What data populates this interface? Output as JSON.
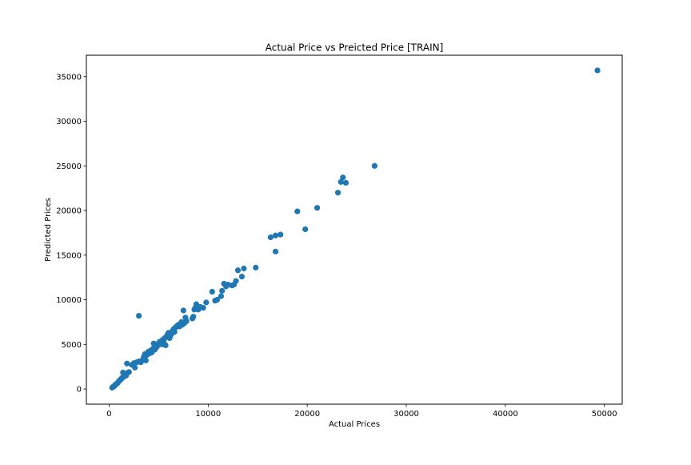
{
  "chart_data": {
    "type": "scatter",
    "title": "Actual Price vs Preicted Price [TRAIN]",
    "xlabel": "Actual Prices",
    "ylabel": "Predicted Prices",
    "xlim": [
      -2300,
      51800
    ],
    "ylim": [
      -1700,
      37400
    ],
    "xticks": [
      0,
      10000,
      20000,
      30000,
      40000,
      50000
    ],
    "yticks": [
      0,
      5000,
      10000,
      15000,
      20000,
      25000,
      30000,
      35000
    ],
    "xtick_labels": [
      "0",
      "10000",
      "20000",
      "30000",
      "40000",
      "50000"
    ],
    "ytick_labels": [
      "0",
      "5000",
      "10000",
      "15000",
      "20000",
      "25000",
      "30000",
      "35000"
    ],
    "grid": false,
    "marker_color": "#1f77b4",
    "series": [
      {
        "points": [
          [
            300,
            150
          ],
          [
            400,
            250
          ],
          [
            500,
            300
          ],
          [
            600,
            450
          ],
          [
            700,
            550
          ],
          [
            800,
            600
          ],
          [
            900,
            750
          ],
          [
            1000,
            900
          ],
          [
            1100,
            1000
          ],
          [
            1200,
            1100
          ],
          [
            1300,
            1250
          ],
          [
            1400,
            1300
          ],
          [
            1500,
            1450
          ],
          [
            1400,
            1850
          ],
          [
            1700,
            1500
          ],
          [
            1800,
            1750
          ],
          [
            2000,
            1900
          ],
          [
            1800,
            2850
          ],
          [
            2300,
            2700
          ],
          [
            2500,
            2900
          ],
          [
            2600,
            2400
          ],
          [
            2800,
            3000
          ],
          [
            3000,
            3100
          ],
          [
            3200,
            3000
          ],
          [
            3400,
            3300
          ],
          [
            3500,
            3600
          ],
          [
            3600,
            3900
          ],
          [
            3700,
            3200
          ],
          [
            3800,
            3800
          ],
          [
            3900,
            4100
          ],
          [
            4000,
            4200
          ],
          [
            4100,
            4000
          ],
          [
            4200,
            4300
          ],
          [
            4300,
            4100
          ],
          [
            4400,
            4500
          ],
          [
            4500,
            5100
          ],
          [
            4600,
            4400
          ],
          [
            4800,
            4700
          ],
          [
            4900,
            4900
          ],
          [
            5000,
            5100
          ],
          [
            5100,
            5300
          ],
          [
            5300,
            5000
          ],
          [
            5400,
            5500
          ],
          [
            5500,
            5400
          ],
          [
            5600,
            5700
          ],
          [
            5700,
            4900
          ],
          [
            5800,
            5900
          ],
          [
            5900,
            6100
          ],
          [
            6000,
            6300
          ],
          [
            6100,
            5700
          ],
          [
            6200,
            6000
          ],
          [
            6300,
            6200
          ],
          [
            6400,
            6500
          ],
          [
            6500,
            6700
          ],
          [
            6600,
            6400
          ],
          [
            6700,
            6900
          ],
          [
            6800,
            7000
          ],
          [
            6900,
            7100
          ],
          [
            7000,
            7200
          ],
          [
            7100,
            7000
          ],
          [
            7200,
            7300
          ],
          [
            7300,
            7500
          ],
          [
            7400,
            7200
          ],
          [
            7500,
            8800
          ],
          [
            7600,
            7400
          ],
          [
            7700,
            8000
          ],
          [
            7800,
            7600
          ],
          [
            3000,
            8200
          ],
          [
            8400,
            7900
          ],
          [
            8500,
            8100
          ],
          [
            8600,
            8900
          ],
          [
            8700,
            9100
          ],
          [
            8800,
            9500
          ],
          [
            9000,
            8900
          ],
          [
            9200,
            9200
          ],
          [
            9500,
            9100
          ],
          [
            9800,
            9700
          ],
          [
            10400,
            10900
          ],
          [
            10700,
            9900
          ],
          [
            10900,
            10000
          ],
          [
            11300,
            10400
          ],
          [
            11400,
            11000
          ],
          [
            11600,
            11800
          ],
          [
            11800,
            11500
          ],
          [
            12000,
            11700
          ],
          [
            12400,
            11600
          ],
          [
            12600,
            11700
          ],
          [
            12800,
            12100
          ],
          [
            13000,
            13300
          ],
          [
            13400,
            12600
          ],
          [
            13600,
            13500
          ],
          [
            14800,
            13600
          ],
          [
            16300,
            17000
          ],
          [
            16800,
            17200
          ],
          [
            17300,
            17300
          ],
          [
            16800,
            15400
          ],
          [
            19000,
            19900
          ],
          [
            19800,
            17900
          ],
          [
            21000,
            20300
          ],
          [
            23100,
            22000
          ],
          [
            23400,
            23200
          ],
          [
            23600,
            23700
          ],
          [
            23900,
            23100
          ],
          [
            26800,
            25000
          ],
          [
            49300,
            35700
          ]
        ]
      }
    ]
  }
}
